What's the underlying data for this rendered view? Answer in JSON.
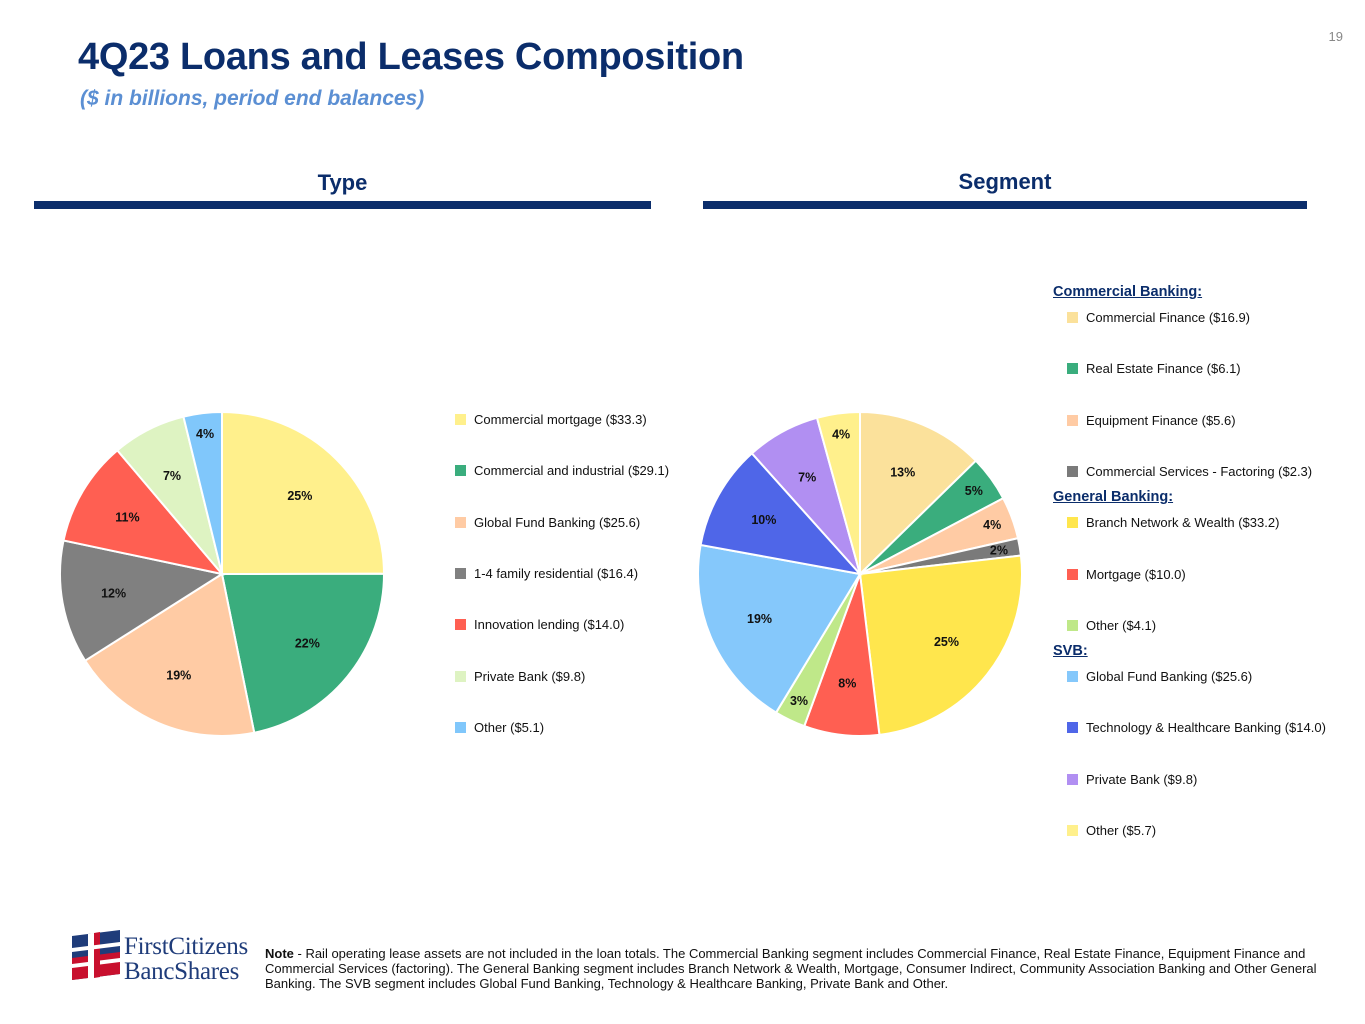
{
  "page_number": "19",
  "header": {
    "title": "4Q23 Loans and Leases Composition",
    "subtitle": "($ in billions, period end balances)"
  },
  "sections": {
    "type": "Type",
    "segment": "Segment"
  },
  "chart_data": [
    {
      "type": "pie",
      "title": "Type",
      "categories": [
        "Commercial mortgage ($33.3)",
        "Commercial and industrial ($29.1)",
        "Global Fund Banking ($25.6)",
        "1-4 family residential ($16.4)",
        "Innovation lending ($14.0)",
        "Private Bank ($9.8)",
        "Other ($5.1)"
      ],
      "values": [
        33.3,
        29.1,
        25.6,
        16.4,
        14.0,
        9.8,
        5.1
      ],
      "labels": [
        "25%",
        "22%",
        "19%",
        "12%",
        "11%",
        "7%",
        "4%"
      ],
      "colors": [
        "#fff08c",
        "#3aad7d",
        "#ffcba4",
        "#808080",
        "#ff5f52",
        "#def3c2",
        "#80c7fb"
      ]
    },
    {
      "type": "pie",
      "title": "Segment",
      "groups": [
        {
          "name": "Commercial Banking:",
          "start": 0
        },
        {
          "name": "General Banking:",
          "start": 4
        },
        {
          "name": "SVB:",
          "start": 7
        }
      ],
      "categories": [
        "Commercial Finance ($16.9)",
        "Real Estate Finance ($6.1)",
        "Equipment Finance ($5.6)",
        "Commercial Services - Factoring ($2.3)",
        "Branch Network & Wealth ($33.2)",
        "Mortgage ($10.0)",
        "Other ($4.1)",
        "Global Fund Banking ($25.6)",
        "Technology & Healthcare Banking ($14.0)",
        "Private Bank ($9.8)",
        "Other ($5.7)"
      ],
      "values": [
        16.9,
        6.1,
        5.6,
        2.3,
        33.2,
        10.0,
        4.1,
        25.6,
        14.0,
        9.8,
        5.7
      ],
      "labels": [
        "13%",
        "5%",
        "4%",
        "2%",
        "25%",
        "8%",
        "3%",
        "19%",
        "10%",
        "7%",
        "4%"
      ],
      "colors": [
        "#fbe19b",
        "#3aad7d",
        "#ffcba4",
        "#7a7a7a",
        "#ffe64d",
        "#ff5f52",
        "#bfe889",
        "#85c8fb",
        "#4f66e8",
        "#b18ff2",
        "#fff08c"
      ]
    }
  ],
  "logo": {
    "line1": "FirstCitizens",
    "line2": "BancShares"
  },
  "note": {
    "label": "Note",
    "text": " - Rail operating lease assets are not included in the loan totals. The Commercial Banking segment includes Commercial Finance, Real Estate Finance, Equipment Finance and Commercial Services (factoring). The General Banking segment includes Branch Network & Wealth, Mortgage, Consumer Indirect, Community Association Banking and Other General Banking. The SVB segment includes Global Fund Banking, Technology & Healthcare Banking, Private Bank and Other."
  }
}
